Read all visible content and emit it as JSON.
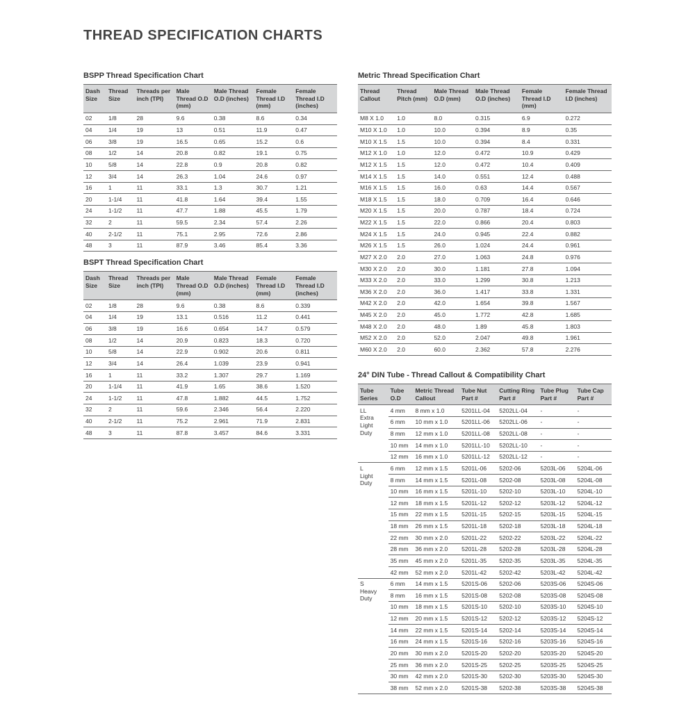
{
  "page_title": "THREAD SPECIFICATION CHARTS",
  "bspp": {
    "title": "BSPP Thread Specification Chart",
    "columns": [
      "Dash Size",
      "Thread Size",
      "Threads per inch (TPI)",
      "Male Thread O.D (mm)",
      "Male Thread O.D (inches)",
      "Female Thread I.D (mm)",
      "Female Thread I.D (inches)"
    ],
    "rows": [
      [
        "02",
        "1/8",
        "28",
        "9.6",
        "0.38",
        "8.6",
        "0.34"
      ],
      [
        "04",
        "1/4",
        "19",
        "13",
        "0.51",
        "11.9",
        "0.47"
      ],
      [
        "06",
        "3/8",
        "19",
        "16.5",
        "0.65",
        "15.2",
        "0.6"
      ],
      [
        "08",
        "1/2",
        "14",
        "20.8",
        "0.82",
        "19.1",
        "0.75"
      ],
      [
        "10",
        "5/8",
        "14",
        "22.8",
        "0.9",
        "20.8",
        "0.82"
      ],
      [
        "12",
        "3/4",
        "14",
        "26.3",
        "1.04",
        "24.6",
        "0.97"
      ],
      [
        "16",
        "1",
        "11",
        "33.1",
        "1.3",
        "30.7",
        "1.21"
      ],
      [
        "20",
        "1-1/4",
        "11",
        "41.8",
        "1.64",
        "39.4",
        "1.55"
      ],
      [
        "24",
        "1-1/2",
        "11",
        "47.7",
        "1.88",
        "45.5",
        "1.79"
      ],
      [
        "32",
        "2",
        "11",
        "59.5",
        "2.34",
        "57.4",
        "2.26"
      ],
      [
        "40",
        "2-1/2",
        "11",
        "75.1",
        "2.95",
        "72.6",
        "2.86"
      ],
      [
        "48",
        "3",
        "11",
        "87.9",
        "3.46",
        "85.4",
        "3.36"
      ]
    ]
  },
  "bspt": {
    "title": "BSPT Thread Specification Chart",
    "columns": [
      "Dash Size",
      "Thread Size",
      "Threads per inch (TPI)",
      "Male Thread O.D (mm)",
      "Male Thread O.D (inches)",
      "Female Thread I.D (mm)",
      "Female Thread I.D (inches)"
    ],
    "rows": [
      [
        "02",
        "1/8",
        "28",
        "9.6",
        "0.38",
        "8.6",
        "0.339"
      ],
      [
        "04",
        "1/4",
        "19",
        "13.1",
        "0.516",
        "11.2",
        "0.441"
      ],
      [
        "06",
        "3/8",
        "19",
        "16.6",
        "0.654",
        "14.7",
        "0.579"
      ],
      [
        "08",
        "1/2",
        "14",
        "20.9",
        "0.823",
        "18.3",
        "0.720"
      ],
      [
        "10",
        "5/8",
        "14",
        "22.9",
        "0.902",
        "20.6",
        "0.811"
      ],
      [
        "12",
        "3/4",
        "14",
        "26.4",
        "1.039",
        "23.9",
        "0.941"
      ],
      [
        "16",
        "1",
        "11",
        "33.2",
        "1.307",
        "29.7",
        "1.169"
      ],
      [
        "20",
        "1-1/4",
        "11",
        "41.9",
        "1.65",
        "38.6",
        "1.520"
      ],
      [
        "24",
        "1-1/2",
        "11",
        "47.8",
        "1.882",
        "44.5",
        "1.752"
      ],
      [
        "32",
        "2",
        "11",
        "59.6",
        "2.346",
        "56.4",
        "2.220"
      ],
      [
        "40",
        "2-1/2",
        "11",
        "75.2",
        "2.961",
        "71.9",
        "2.831"
      ],
      [
        "48",
        "3",
        "11",
        "87.8",
        "3.457",
        "84.6",
        "3.331"
      ]
    ]
  },
  "metric": {
    "title": "Metric Thread Specification Chart",
    "columns": [
      "Thread Callout",
      "Thread Pitch (mm)",
      "Male Thread O.D (mm)",
      "Male Thread O.D (inches)",
      "Female Thread I.D (mm)",
      "Female Thread I.D (inches)"
    ],
    "rows": [
      [
        "M8 X 1.0",
        "1.0",
        "8.0",
        "0.315",
        "6.9",
        "0.272"
      ],
      [
        "M10 X 1.0",
        "1.0",
        "10.0",
        "0.394",
        "8.9",
        "0.35"
      ],
      [
        "M10 X 1.5",
        "1.5",
        "10.0",
        "0.394",
        "8.4",
        "0.331"
      ],
      [
        "M12 X 1.0",
        "1.0",
        "12.0",
        "0.472",
        "10.9",
        "0.429"
      ],
      [
        "M12 X 1.5",
        "1.5",
        "12.0",
        "0.472",
        "10.4",
        "0.409"
      ],
      [
        "M14 X 1.5",
        "1.5",
        "14.0",
        "0.551",
        "12.4",
        "0.488"
      ],
      [
        "M16 X 1.5",
        "1.5",
        "16.0",
        "0.63",
        "14.4",
        "0.567"
      ],
      [
        "M18 X 1.5",
        "1.5",
        "18.0",
        "0.709",
        "16.4",
        "0.646"
      ],
      [
        "M20 X 1.5",
        "1.5",
        "20.0",
        "0.787",
        "18.4",
        "0.724"
      ],
      [
        "M22 X 1.5",
        "1.5",
        "22.0",
        "0.866",
        "20.4",
        "0.803"
      ],
      [
        "M24 X 1.5",
        "1.5",
        "24.0",
        "0.945",
        "22.4",
        "0.882"
      ],
      [
        "M26 X 1.5",
        "1.5",
        "26.0",
        "1.024",
        "24.4",
        "0.961"
      ],
      [
        "M27 X 2.0",
        "2.0",
        "27.0",
        "1.063",
        "24.8",
        "0.976"
      ],
      [
        "M30 X 2.0",
        "2.0",
        "30.0",
        "1.181",
        "27.8",
        "1.094"
      ],
      [
        "M33 X 2.0",
        "2.0",
        "33.0",
        "1.299",
        "30.8",
        "1.213"
      ],
      [
        "M36 X 2.0",
        "2.0",
        "36.0",
        "1.417",
        "33.8",
        "1.331"
      ],
      [
        "M42 X 2.0",
        "2.0",
        "42.0",
        "1.654",
        "39.8",
        "1.567"
      ],
      [
        "M45 X 2.0",
        "2.0",
        "45.0",
        "1.772",
        "42.8",
        "1.685"
      ],
      [
        "M48 X 2.0",
        "2.0",
        "48.0",
        "1.89",
        "45.8",
        "1.803"
      ],
      [
        "M52 X 2.0",
        "2.0",
        "52.0",
        "2.047",
        "49.8",
        "1.961"
      ],
      [
        "M60 X 2.0",
        "2.0",
        "60.0",
        "2.362",
        "57.8",
        "2.276"
      ]
    ]
  },
  "din": {
    "title": "24° DIN Tube - Thread Callout & Compatibility Chart",
    "columns": [
      "Tube Series",
      "Tube O.D",
      "Metric Thread Callout",
      "Tube Nut Part #",
      "Cutting Ring Part #",
      "Tube Plug Part #",
      "Tube Cap Part #"
    ],
    "series": [
      {
        "label": "LL\nExtra Light Duty",
        "rows": [
          [
            "4 mm",
            "8 mm x 1.0",
            "5201LL-04",
            "5202LL-04",
            "-",
            "-"
          ],
          [
            "6 mm",
            "10 mm x 1.0",
            "5201LL-06",
            "5202LL-06",
            "-",
            "-"
          ],
          [
            "8 mm",
            "12 mm x 1.0",
            "5201LL-08",
            "5202LL-08",
            "-",
            "-"
          ],
          [
            "10 mm",
            "14 mm x 1.0",
            "5201LL-10",
            "5202LL-10",
            "-",
            "-"
          ],
          [
            "12 mm",
            "16 mm x 1.0",
            "5201LL-12",
            "5202LL-12",
            "-",
            "-"
          ]
        ]
      },
      {
        "label": "L\nLight Duty",
        "rows": [
          [
            "6 mm",
            "12 mm x 1.5",
            "5201L-06",
            "5202-06",
            "5203L-06",
            "5204L-06"
          ],
          [
            "8 mm",
            "14 mm x 1.5",
            "5201L-08",
            "5202-08",
            "5203L-08",
            "5204L-08"
          ],
          [
            "10 mm",
            "16 mm x 1.5",
            "5201L-10",
            "5202-10",
            "5203L-10",
            "5204L-10"
          ],
          [
            "12 mm",
            "18 mm x 1.5",
            "5201L-12",
            "5202-12",
            "5203L-12",
            "5204L-12"
          ],
          [
            "15 mm",
            "22 mm x 1.5",
            "5201L-15",
            "5202-15",
            "5203L-15",
            "5204L-15"
          ],
          [
            "18 mm",
            "26 mm x 1.5",
            "5201L-18",
            "5202-18",
            "5203L-18",
            "5204L-18"
          ],
          [
            "22 mm",
            "30 mm x 2.0",
            "5201L-22",
            "5202-22",
            "5203L-22",
            "5204L-22"
          ],
          [
            "28 mm",
            "36 mm x 2.0",
            "5201L-28",
            "5202-28",
            "5203L-28",
            "5204L-28"
          ],
          [
            "35 mm",
            "45 mm x 2.0",
            "5201L-35",
            "5202-35",
            "5203L-35",
            "5204L-35"
          ],
          [
            "42 mm",
            "52 mm x 2.0",
            "5201L-42",
            "5202-42",
            "5203L-42",
            "5204L-42"
          ]
        ]
      },
      {
        "label": "S\nHeavy Duty",
        "rows": [
          [
            "6 mm",
            "14 mm x 1.5",
            "5201S-06",
            "5202-06",
            "5203S-06",
            "5204S-06"
          ],
          [
            "8 mm",
            "16 mm x 1.5",
            "5201S-08",
            "5202-08",
            "5203S-08",
            "5204S-08"
          ],
          [
            "10 mm",
            "18 mm x 1.5",
            "5201S-10",
            "5202-10",
            "5203S-10",
            "5204S-10"
          ],
          [
            "12 mm",
            "20 mm x 1.5",
            "5201S-12",
            "5202-12",
            "5203S-12",
            "5204S-12"
          ],
          [
            "14 mm",
            "22 mm x 1.5",
            "5201S-14",
            "5202-14",
            "5203S-14",
            "5204S-14"
          ],
          [
            "16 mm",
            "24 mm x 1.5",
            "5201S-16",
            "5202-16",
            "5203S-16",
            "5204S-16"
          ],
          [
            "20 mm",
            "30 mm x 2.0",
            "5201S-20",
            "5202-20",
            "5203S-20",
            "5204S-20"
          ],
          [
            "25 mm",
            "36 mm x 2.0",
            "5201S-25",
            "5202-25",
            "5203S-25",
            "5204S-25"
          ],
          [
            "30 mm",
            "42 mm x 2.0",
            "5201S-30",
            "5202-30",
            "5203S-30",
            "5204S-30"
          ],
          [
            "38 mm",
            "52 mm x 2.0",
            "5201S-38",
            "5202-38",
            "5203S-38",
            "5204S-38"
          ]
        ]
      }
    ]
  }
}
